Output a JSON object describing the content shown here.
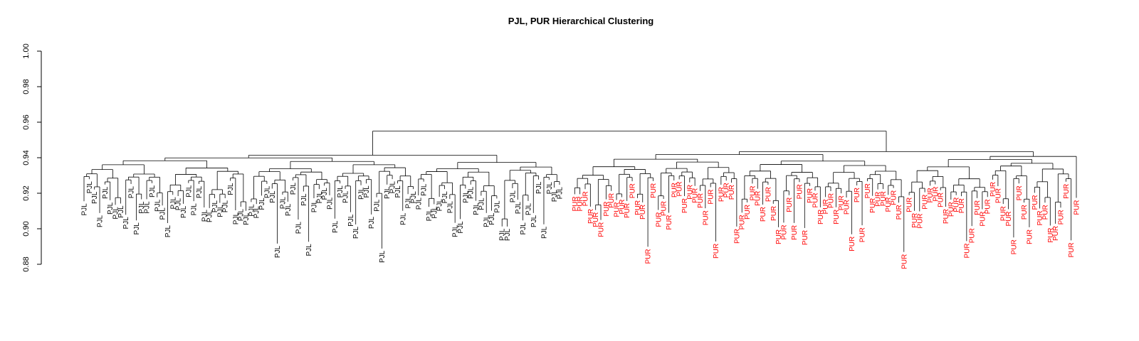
{
  "chart_data": {
    "type": "dendrogram",
    "title": "PJL, PUR Hierarchical Clustering",
    "xlabel": "",
    "ylabel": "",
    "ylim": [
      0.88,
      1.0
    ],
    "y_ticks": [
      "0.88",
      "0.90",
      "0.92",
      "0.94",
      "0.96",
      "0.98",
      "1.00"
    ],
    "groups": [
      {
        "label": "PJL",
        "color": "#000000",
        "count": 92
      },
      {
        "label": "PUR",
        "color": "#ff0000",
        "count": 97
      }
    ],
    "root_height": 0.955,
    "branch_heights": {
      "PJL": 0.945,
      "PUR": 0.9485
    }
  }
}
